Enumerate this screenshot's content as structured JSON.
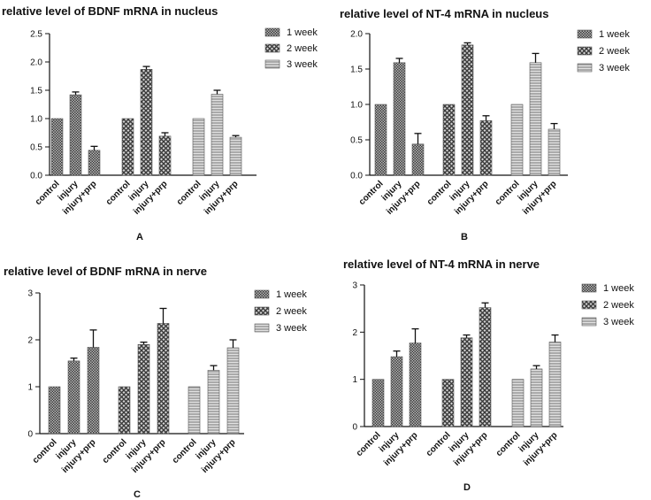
{
  "panels": [
    {
      "label": "A",
      "title": "relative level of BDNF mRNA in nucleus"
    },
    {
      "label": "B",
      "title": "relative level of NT-4 mRNA in nucleus"
    },
    {
      "label": "C",
      "title": "relative level of BDNF mRNA in nerve"
    },
    {
      "label": "D",
      "title": "relative level of NT-4 mRNA in nerve"
    }
  ],
  "colors": {
    "bar_fill": "#8c8c8c",
    "bar_dark": "#3a3a3a",
    "axis": "#111111"
  },
  "chart_data": [
    {
      "type": "bar",
      "title": "relative level of BDNF mRNA in nucleus",
      "panel_label": "A",
      "categories": [
        "control",
        "injury",
        "injury+prp"
      ],
      "series": [
        {
          "name": "1 week",
          "values": [
            1.0,
            1.42,
            0.44
          ],
          "errors": [
            0,
            0.05,
            0.07
          ]
        },
        {
          "name": "2 week",
          "values": [
            1.0,
            1.87,
            0.69
          ],
          "errors": [
            0,
            0.05,
            0.06
          ]
        },
        {
          "name": "3 week",
          "values": [
            1.0,
            1.43,
            0.67
          ],
          "errors": [
            0,
            0.07,
            0.03
          ]
        }
      ],
      "ylim": [
        0,
        2.5
      ],
      "yticks": [
        "0.0",
        "0.5",
        "1.0",
        "1.5",
        "2.0",
        "2.5"
      ],
      "legend": "right"
    },
    {
      "type": "bar",
      "title": "relative level of NT-4 mRNA in nucleus",
      "panel_label": "B",
      "categories": [
        "control",
        "injury",
        "injury+prp"
      ],
      "series": [
        {
          "name": "1 week",
          "values": [
            1.0,
            1.59,
            0.44
          ],
          "errors": [
            0,
            0.06,
            0.15
          ]
        },
        {
          "name": "2 week",
          "values": [
            1.0,
            1.84,
            0.77
          ],
          "errors": [
            0,
            0.03,
            0.07
          ]
        },
        {
          "name": "3 week",
          "values": [
            1.0,
            1.59,
            0.65
          ],
          "errors": [
            0,
            0.13,
            0.08
          ]
        }
      ],
      "ylim": [
        0,
        2.0
      ],
      "yticks": [
        "0.0",
        "0.5",
        "1.0",
        "1.5",
        "2.0"
      ],
      "legend": "right"
    },
    {
      "type": "bar",
      "title": "relative level of BDNF mRNA in nerve",
      "panel_label": "C",
      "categories": [
        "control",
        "injury",
        "injury+prp"
      ],
      "series": [
        {
          "name": "1 week",
          "values": [
            1.0,
            1.55,
            1.84
          ],
          "errors": [
            0,
            0.06,
            0.37
          ]
        },
        {
          "name": "2 week",
          "values": [
            1.0,
            1.9,
            2.35
          ],
          "errors": [
            0,
            0.05,
            0.32
          ]
        },
        {
          "name": "3 week",
          "values": [
            1.0,
            1.35,
            1.83
          ],
          "errors": [
            0,
            0.1,
            0.17
          ]
        }
      ],
      "ylim": [
        0,
        3
      ],
      "yticks": [
        "0",
        "1",
        "2",
        "3"
      ],
      "legend": "right"
    },
    {
      "type": "bar",
      "title": "relative level of NT-4 mRNA in nerve",
      "panel_label": "D",
      "categories": [
        "control",
        "injury",
        "injury+prp"
      ],
      "series": [
        {
          "name": "1 week",
          "values": [
            1.0,
            1.48,
            1.77
          ],
          "errors": [
            0,
            0.12,
            0.3
          ]
        },
        {
          "name": "2 week",
          "values": [
            1.0,
            1.88,
            2.52
          ],
          "errors": [
            0,
            0.06,
            0.1
          ]
        },
        {
          "name": "3 week",
          "values": [
            1.0,
            1.22,
            1.79
          ],
          "errors": [
            0,
            0.07,
            0.15
          ]
        }
      ],
      "ylim": [
        0,
        3
      ],
      "yticks": [
        "0",
        "1",
        "2",
        "3"
      ],
      "legend": "right"
    }
  ]
}
